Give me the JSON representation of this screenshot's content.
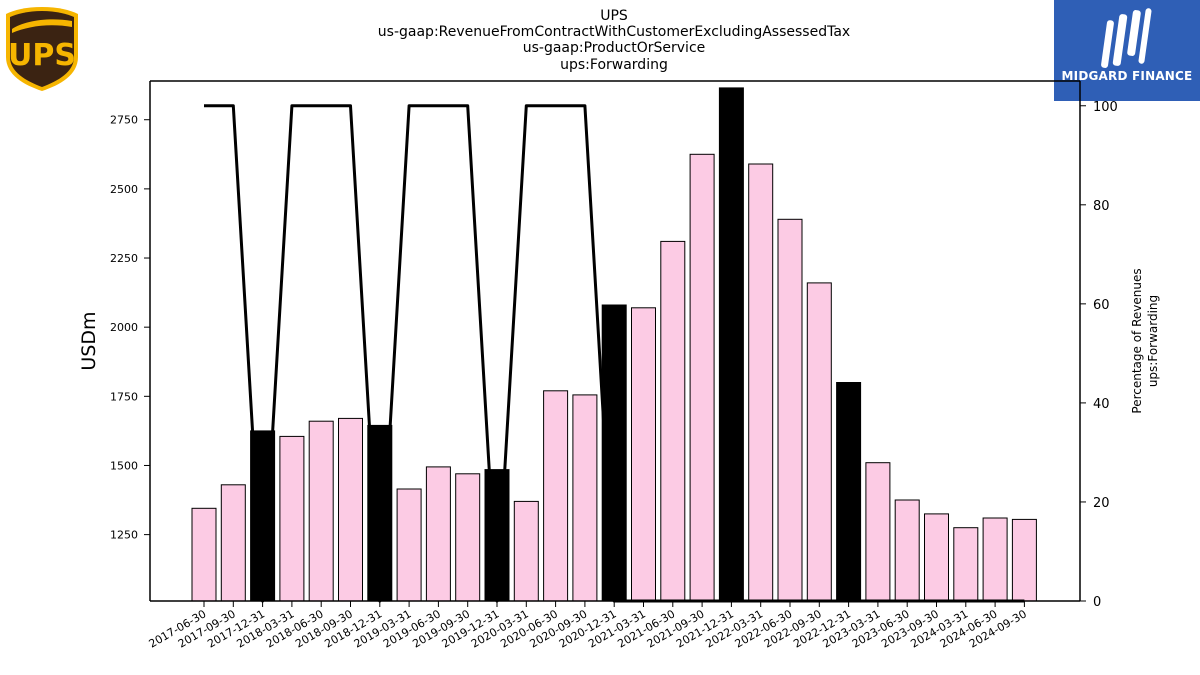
{
  "titles": {
    "line1": "UPS",
    "line2": "us-gaap:RevenueFromContractWithCustomerExcludingAssessedTax",
    "line3": "us-gaap:ProductOrService",
    "line4": "ups:Forwarding"
  },
  "logos": {
    "ups_text": "UPS",
    "midgard_text": "MIDGARD FINANCE"
  },
  "chart_data": {
    "type": "bar",
    "categories": [
      "2017-06-30",
      "2017-09-30",
      "2017-12-31",
      "2018-03-31",
      "2018-06-30",
      "2018-09-30",
      "2018-12-31",
      "2019-03-31",
      "2019-06-30",
      "2019-09-30",
      "2019-12-31",
      "2020-03-31",
      "2020-06-30",
      "2020-09-30",
      "2020-12-31",
      "2021-03-31",
      "2021-06-30",
      "2021-09-30",
      "2021-12-31",
      "2022-03-31",
      "2022-06-30",
      "2022-09-30",
      "2022-12-31",
      "2023-03-31",
      "2023-06-30",
      "2023-09-30",
      "2024-03-31",
      "2024-06-30",
      "2024-09-30"
    ],
    "values": [
      1345,
      1430,
      1625,
      1605,
      1660,
      1670,
      1645,
      1415,
      1495,
      1470,
      1485,
      1370,
      1770,
      1755,
      2080,
      2070,
      2310,
      2625,
      2865,
      2590,
      2390,
      2160,
      1800,
      1510,
      1375,
      1325,
      1275,
      1310,
      1305
    ],
    "highlight": [
      false,
      false,
      true,
      false,
      false,
      false,
      true,
      false,
      false,
      false,
      true,
      false,
      false,
      false,
      true,
      false,
      false,
      false,
      true,
      false,
      false,
      false,
      true,
      false,
      false,
      false,
      false,
      false,
      false
    ],
    "bar_color": "#fccbe4",
    "highlight_color": "#000000",
    "ylabel": "USDm",
    "y_ticks": [
      1250,
      1500,
      1750,
      2000,
      2250,
      2500,
      2750
    ],
    "ylim": [
      1010,
      2890
    ],
    "secondary_axis": {
      "label_line1": "Percentage of Revenues",
      "label_line2": "ups:Forwarding",
      "ticks": [
        0,
        20,
        40,
        60,
        80,
        100
      ],
      "ylim": [
        0,
        105
      ],
      "line_values": [
        100,
        100,
        0,
        100,
        100,
        100,
        0,
        100,
        100,
        100,
        0,
        100,
        100,
        100,
        0,
        0,
        0,
        0,
        0,
        0,
        0,
        0,
        0,
        0,
        0,
        0,
        0,
        0,
        0
      ]
    },
    "grid": false
  }
}
